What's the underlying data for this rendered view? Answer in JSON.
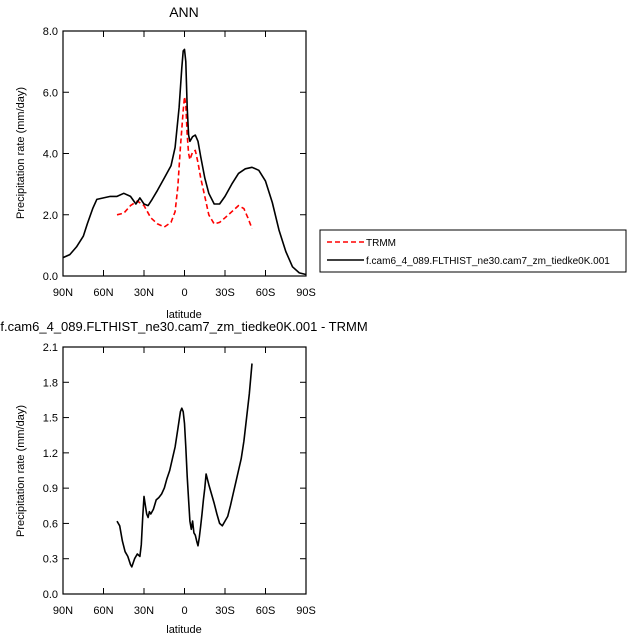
{
  "chart_data": [
    {
      "type": "line",
      "title": "ANN",
      "xlabel": "latitude",
      "ylabel": "Precipitation rate (mm/day)",
      "xlim": [
        90,
        -90
      ],
      "ylim": [
        0,
        8
      ],
      "x_ticks": [
        90,
        60,
        30,
        0,
        -30,
        -60,
        -90
      ],
      "x_tick_labels": [
        "90N",
        "60N",
        "30N",
        "0",
        "30S",
        "60S",
        "90S"
      ],
      "y_ticks": [
        0,
        2,
        4,
        6,
        8
      ],
      "y_tick_labels": [
        "0.0",
        "2.0",
        "4.0",
        "6.0",
        "8.0"
      ],
      "grid": false,
      "legend_position": "outside-right",
      "series": [
        {
          "name": "TRMM",
          "color": "#ff0000",
          "dash": "dashed",
          "points": [
            [
              50,
              2.0
            ],
            [
              45,
              2.05
            ],
            [
              40,
              2.3
            ],
            [
              35,
              2.45
            ],
            [
              30,
              2.3
            ],
            [
              25,
              1.9
            ],
            [
              20,
              1.7
            ],
            [
              15,
              1.6
            ],
            [
              10,
              1.75
            ],
            [
              7,
              2.1
            ],
            [
              5,
              2.9
            ],
            [
              3,
              4.2
            ],
            [
              1,
              5.4
            ],
            [
              0,
              5.85
            ],
            [
              -1,
              5.6
            ],
            [
              -2,
              4.6
            ],
            [
              -3,
              4.0
            ],
            [
              -4,
              3.8
            ],
            [
              -6,
              4.05
            ],
            [
              -8,
              4.1
            ],
            [
              -10,
              3.7
            ],
            [
              -12,
              3.2
            ],
            [
              -15,
              2.6
            ],
            [
              -18,
              2.0
            ],
            [
              -22,
              1.7
            ],
            [
              -26,
              1.75
            ],
            [
              -30,
              1.9
            ],
            [
              -35,
              2.1
            ],
            [
              -40,
              2.3
            ],
            [
              -44,
              2.2
            ],
            [
              -47,
              1.9
            ],
            [
              -50,
              1.55
            ]
          ]
        },
        {
          "name": "f.cam6_4_089.FLTHIST_ne30.cam7_zm_tiedke0K.001",
          "color": "#000000",
          "dash": "solid",
          "points": [
            [
              90,
              0.6
            ],
            [
              85,
              0.7
            ],
            [
              80,
              0.95
            ],
            [
              75,
              1.3
            ],
            [
              72,
              1.7
            ],
            [
              68,
              2.2
            ],
            [
              65,
              2.5
            ],
            [
              60,
              2.55
            ],
            [
              55,
              2.6
            ],
            [
              50,
              2.6
            ],
            [
              45,
              2.7
            ],
            [
              40,
              2.6
            ],
            [
              36,
              2.35
            ],
            [
              33,
              2.55
            ],
            [
              30,
              2.35
            ],
            [
              27,
              2.3
            ],
            [
              24,
              2.5
            ],
            [
              20,
              2.8
            ],
            [
              15,
              3.2
            ],
            [
              10,
              3.6
            ],
            [
              7,
              4.2
            ],
            [
              4,
              5.5
            ],
            [
              2,
              6.8
            ],
            [
              1,
              7.35
            ],
            [
              0,
              7.4
            ],
            [
              -1,
              7.0
            ],
            [
              -2,
              5.5
            ],
            [
              -3,
              4.6
            ],
            [
              -4,
              4.4
            ],
            [
              -6,
              4.55
            ],
            [
              -8,
              4.6
            ],
            [
              -10,
              4.4
            ],
            [
              -12,
              3.9
            ],
            [
              -15,
              3.2
            ],
            [
              -18,
              2.7
            ],
            [
              -22,
              2.35
            ],
            [
              -26,
              2.35
            ],
            [
              -30,
              2.6
            ],
            [
              -35,
              3.0
            ],
            [
              -40,
              3.35
            ],
            [
              -45,
              3.5
            ],
            [
              -50,
              3.55
            ],
            [
              -55,
              3.45
            ],
            [
              -60,
              3.1
            ],
            [
              -65,
              2.4
            ],
            [
              -70,
              1.5
            ],
            [
              -75,
              0.8
            ],
            [
              -80,
              0.3
            ],
            [
              -85,
              0.1
            ],
            [
              -90,
              0.05
            ]
          ]
        }
      ]
    },
    {
      "type": "line",
      "title": "f.cam6_4_089.FLTHIST_ne30.cam7_zm_tiedke0K.001 - TRMM",
      "xlabel": "latitude",
      "ylabel": "Precipitation rate (mm/day)",
      "xlim": [
        90,
        -90
      ],
      "ylim": [
        0,
        2.1
      ],
      "x_ticks": [
        90,
        60,
        30,
        0,
        -30,
        -60,
        -90
      ],
      "x_tick_labels": [
        "90N",
        "60N",
        "30N",
        "0",
        "30S",
        "60S",
        "90S"
      ],
      "y_ticks": [
        0,
        0.3,
        0.6,
        0.9,
        1.2,
        1.5,
        1.8,
        2.1
      ],
      "y_tick_labels": [
        "0.0",
        "0.3",
        "0.6",
        "0.9",
        "1.2",
        "1.5",
        "1.8",
        "2.1"
      ],
      "grid": false,
      "series": [
        {
          "color": "#000000",
          "dash": "solid",
          "points": [
            [
              50,
              0.62
            ],
            [
              48,
              0.58
            ],
            [
              46,
              0.45
            ],
            [
              44,
              0.36
            ],
            [
              42,
              0.32
            ],
            [
              40,
              0.25
            ],
            [
              39,
              0.23
            ],
            [
              37,
              0.3
            ],
            [
              35,
              0.34
            ],
            [
              33,
              0.32
            ],
            [
              32,
              0.42
            ],
            [
              31,
              0.65
            ],
            [
              30,
              0.83
            ],
            [
              29,
              0.75
            ],
            [
              28,
              0.68
            ],
            [
              27,
              0.65
            ],
            [
              26,
              0.7
            ],
            [
              25,
              0.68
            ],
            [
              23,
              0.72
            ],
            [
              21,
              0.8
            ],
            [
              19,
              0.82
            ],
            [
              17,
              0.85
            ],
            [
              15,
              0.9
            ],
            [
              13,
              0.98
            ],
            [
              11,
              1.05
            ],
            [
              9,
              1.15
            ],
            [
              7,
              1.25
            ],
            [
              5,
              1.4
            ],
            [
              3,
              1.55
            ],
            [
              2,
              1.58
            ],
            [
              1,
              1.55
            ],
            [
              0,
              1.45
            ],
            [
              -1,
              1.25
            ],
            [
              -2,
              1.0
            ],
            [
              -3,
              0.8
            ],
            [
              -4,
              0.62
            ],
            [
              -5,
              0.55
            ],
            [
              -6,
              0.62
            ],
            [
              -7,
              0.52
            ],
            [
              -8,
              0.5
            ],
            [
              -9,
              0.45
            ],
            [
              -10,
              0.41
            ],
            [
              -11,
              0.48
            ],
            [
              -12,
              0.58
            ],
            [
              -13,
              0.68
            ],
            [
              -14,
              0.8
            ],
            [
              -15,
              0.9
            ],
            [
              -16,
              1.02
            ],
            [
              -18,
              0.93
            ],
            [
              -20,
              0.85
            ],
            [
              -22,
              0.77
            ],
            [
              -24,
              0.68
            ],
            [
              -26,
              0.6
            ],
            [
              -28,
              0.58
            ],
            [
              -30,
              0.62
            ],
            [
              -32,
              0.66
            ],
            [
              -34,
              0.75
            ],
            [
              -36,
              0.85
            ],
            [
              -38,
              0.95
            ],
            [
              -40,
              1.05
            ],
            [
              -42,
              1.15
            ],
            [
              -44,
              1.3
            ],
            [
              -46,
              1.5
            ],
            [
              -48,
              1.7
            ],
            [
              -50,
              1.96
            ]
          ]
        }
      ]
    }
  ]
}
